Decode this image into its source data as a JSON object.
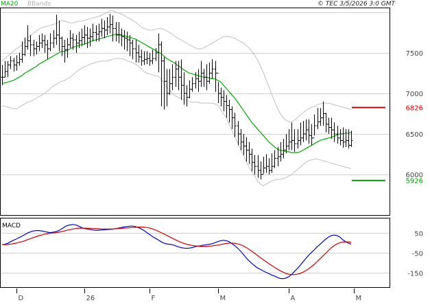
{
  "header": {
    "ma_label": "MA20",
    "bb_label": "BBands",
    "copyright": "© TEC 3/5/2026 3:0 GMT"
  },
  "colors": {
    "ma": "#00aa00",
    "bb": "#c0c0c0",
    "price": "#000000",
    "macd": "#0000cc",
    "signal": "#cc0000",
    "resistance": "#cc0000",
    "support": "#009900",
    "grid": "#d0d0d0",
    "frame": "#000000"
  },
  "chart_data": [
    {
      "type": "ohlc",
      "name": "price-panel",
      "y_ticks": [
        6000,
        6500,
        7000,
        7500
      ],
      "y_tick_labels": [
        "6000",
        "6500",
        "7000",
        "7500"
      ],
      "ylim": [
        5500,
        8050
      ],
      "x_count": 124,
      "x_ticks": [
        {
          "label": "D",
          "index": 5
        },
        {
          "label": "26",
          "index": 29
        },
        {
          "label": "F",
          "index": 52
        },
        {
          "label": "M",
          "index": 76
        },
        {
          "label": "A",
          "index": 101
        },
        {
          "label": "M",
          "index": 124
        }
      ],
      "levels": [
        {
          "label": "6826",
          "value": 6826,
          "kind": "resistance"
        },
        {
          "label": "5926",
          "value": 5926,
          "kind": "support"
        }
      ],
      "close": [
        7200,
        7270,
        7350,
        7400,
        7350,
        7380,
        7420,
        7480,
        7580,
        7650,
        7600,
        7550,
        7580,
        7620,
        7650,
        7600,
        7550,
        7620,
        7680,
        7720,
        7680,
        7580,
        7540,
        7600,
        7680,
        7660,
        7620,
        7650,
        7690,
        7720,
        7680,
        7700,
        7750,
        7730,
        7760,
        7800,
        7780,
        7820,
        7850,
        7800,
        7720,
        7720,
        7700,
        7680,
        7660,
        7620,
        7550,
        7500,
        7450,
        7400,
        7420,
        7430,
        7400,
        7430,
        7500,
        7600,
        7400,
        7150,
        7000,
        7120,
        7200,
        7300,
        7200,
        7100,
        7000,
        6950,
        7050,
        7120,
        7180,
        7150,
        7250,
        7200,
        7150,
        7250,
        7300,
        7250,
        7000,
        6950,
        6900,
        6850,
        6800,
        6700,
        6600,
        6500,
        6400,
        6350,
        6300,
        6250,
        6150,
        6100,
        6050,
        6000,
        6080,
        6100,
        6050,
        6100,
        6200,
        6220,
        6250,
        6300,
        6350,
        6400,
        6420,
        6380,
        6420,
        6450,
        6500,
        6550,
        6480,
        6450,
        6600,
        6650,
        6700,
        6750,
        6620,
        6580,
        6550,
        6500,
        6450,
        6420,
        6400,
        6420,
        6360,
        6420
      ],
      "high": [
        7350,
        7400,
        7400,
        7460,
        7440,
        7470,
        7500,
        7640,
        7690,
        7840,
        7720,
        7660,
        7640,
        7720,
        7740,
        7720,
        7660,
        7740,
        7780,
        7970,
        7900,
        7700,
        7660,
        7680,
        7780,
        7740,
        7720,
        7760,
        7800,
        7840,
        7820,
        7800,
        7860,
        7840,
        7860,
        7920,
        7900,
        7940,
        7980,
        7960,
        7880,
        7880,
        7800,
        7780,
        7760,
        7720,
        7660,
        7660,
        7600,
        7540,
        7520,
        7520,
        7500,
        7540,
        7560,
        7740,
        7640,
        7450,
        7300,
        7300,
        7360,
        7400,
        7400,
        7420,
        7260,
        7100,
        7160,
        7200,
        7260,
        7300,
        7400,
        7300,
        7360,
        7380,
        7420,
        7400,
        7140,
        7070,
        7040,
        6980,
        6920,
        6840,
        6760,
        6660,
        6560,
        6500,
        6460,
        6400,
        6320,
        6240,
        6240,
        6160,
        6220,
        6250,
        6200,
        6260,
        6300,
        6340,
        6400,
        6440,
        6500,
        6560,
        6640,
        6560,
        6560,
        6640,
        6660,
        6680,
        6680,
        6620,
        6740,
        6820,
        6820,
        6900,
        6760,
        6700,
        6700,
        6640,
        6600,
        6560,
        6580,
        6560,
        6560,
        6540
      ],
      "low": [
        7100,
        7200,
        7200,
        7300,
        7270,
        7280,
        7340,
        7380,
        7460,
        7540,
        7460,
        7460,
        7480,
        7520,
        7560,
        7500,
        7420,
        7520,
        7560,
        7600,
        7520,
        7460,
        7380,
        7440,
        7560,
        7540,
        7500,
        7560,
        7580,
        7600,
        7560,
        7580,
        7640,
        7640,
        7640,
        7700,
        7680,
        7720,
        7740,
        7640,
        7640,
        7620,
        7580,
        7540,
        7520,
        7460,
        7420,
        7380,
        7380,
        7340,
        7350,
        7360,
        7340,
        7360,
        7400,
        7260,
        6840,
        6800,
        6840,
        6980,
        7040,
        7080,
        7040,
        6920,
        6860,
        6840,
        6940,
        7020,
        7060,
        7020,
        7080,
        7080,
        7040,
        7120,
        7180,
        7020,
        6880,
        6840,
        6780,
        6700,
        6640,
        6560,
        6460,
        6360,
        6300,
        6240,
        6160,
        6130,
        6040,
        6000,
        5960,
        5940,
        6010,
        6020,
        6000,
        6020,
        6080,
        6100,
        6160,
        6200,
        6260,
        6300,
        6300,
        6280,
        6320,
        6360,
        6400,
        6420,
        6380,
        6360,
        6480,
        6560,
        6600,
        6600,
        6520,
        6500,
        6440,
        6400,
        6380,
        6360,
        6330,
        6340,
        6320,
        6340
      ],
      "ma20": [
        7120,
        7130,
        7140,
        7150,
        7160,
        7180,
        7200,
        7220,
        7250,
        7270,
        7290,
        7310,
        7330,
        7360,
        7380,
        7400,
        7420,
        7440,
        7460,
        7480,
        7500,
        7520,
        7520,
        7530,
        7550,
        7570,
        7580,
        7590,
        7600,
        7610,
        7620,
        7640,
        7650,
        7660,
        7670,
        7680,
        7690,
        7700,
        7710,
        7720,
        7730,
        7730,
        7720,
        7710,
        7700,
        7690,
        7680,
        7670,
        7650,
        7630,
        7610,
        7590,
        7570,
        7550,
        7530,
        7510,
        7490,
        7460,
        7430,
        7410,
        7390,
        7370,
        7340,
        7320,
        7290,
        7270,
        7250,
        7240,
        7230,
        7220,
        7210,
        7200,
        7200,
        7190,
        7180,
        7180,
        7160,
        7140,
        7100,
        7060,
        7020,
        6980,
        6940,
        6890,
        6840,
        6790,
        6740,
        6690,
        6640,
        6600,
        6560,
        6520,
        6480,
        6440,
        6400,
        6370,
        6340,
        6310,
        6300,
        6290,
        6280,
        6280,
        6270,
        6270,
        6270,
        6280,
        6300,
        6320,
        6340,
        6360,
        6380,
        6400,
        6420,
        6430,
        6440,
        6450,
        6460,
        6470,
        6490,
        6500,
        6500,
        6510,
        6510,
        6520
      ],
      "bb_upper": [
        7400,
        7430,
        7460,
        7490,
        7520,
        7550,
        7570,
        7600,
        7640,
        7680,
        7710,
        7740,
        7770,
        7790,
        7810,
        7820,
        7830,
        7840,
        7850,
        7860,
        7880,
        7900,
        7890,
        7880,
        7870,
        7870,
        7880,
        7890,
        7890,
        7900,
        7910,
        7920,
        7930,
        7940,
        7950,
        7960,
        7980,
        8000,
        8020,
        8020,
        8000,
        7990,
        7980,
        7960,
        7940,
        7920,
        7900,
        7880,
        7850,
        7820,
        7800,
        7790,
        7780,
        7780,
        7790,
        7800,
        7800,
        7790,
        7770,
        7750,
        7730,
        7700,
        7680,
        7660,
        7640,
        7620,
        7600,
        7580,
        7560,
        7550,
        7550,
        7560,
        7580,
        7600,
        7620,
        7640,
        7660,
        7680,
        7700,
        7700,
        7700,
        7690,
        7680,
        7660,
        7640,
        7620,
        7590,
        7560,
        7520,
        7470,
        7410,
        7340,
        7260,
        7170,
        7080,
        6990,
        6900,
        6820,
        6750,
        6700,
        6670,
        6650,
        6650,
        6670,
        6700,
        6730,
        6760,
        6790,
        6810,
        6830,
        6840,
        6860,
        6870,
        6880,
        6880,
        6880,
        6870,
        6860,
        6850,
        6840,
        6830,
        6820,
        6810,
        6800
      ],
      "bb_lower": [
        6850,
        6840,
        6830,
        6820,
        6810,
        6810,
        6830,
        6850,
        6870,
        6890,
        6900,
        6920,
        6940,
        6960,
        6980,
        7000,
        7030,
        7060,
        7090,
        7110,
        7130,
        7150,
        7160,
        7180,
        7200,
        7230,
        7260,
        7290,
        7310,
        7330,
        7340,
        7360,
        7370,
        7380,
        7390,
        7400,
        7400,
        7400,
        7410,
        7420,
        7430,
        7430,
        7430,
        7420,
        7400,
        7390,
        7380,
        7360,
        7340,
        7300,
        7270,
        7250,
        7240,
        7230,
        7220,
        7210,
        7180,
        7130,
        7080,
        7040,
        7000,
        6970,
        6950,
        6940,
        6920,
        6910,
        6900,
        6890,
        6890,
        6890,
        6880,
        6880,
        6880,
        6880,
        6880,
        6870,
        6850,
        6800,
        6750,
        6700,
        6620,
        6540,
        6460,
        6390,
        6310,
        6240,
        6160,
        6090,
        6030,
        5980,
        5920,
        5880,
        5860,
        5880,
        5900,
        5920,
        5930,
        5940,
        5940,
        5950,
        5960,
        5980,
        6000,
        6030,
        6060,
        6090,
        6120,
        6150,
        6170,
        6180,
        6190,
        6190,
        6180,
        6170,
        6160,
        6150,
        6140,
        6130,
        6120,
        6110,
        6100,
        6090,
        6080,
        6070
      ]
    },
    {
      "type": "line",
      "name": "macd-panel",
      "title": "MACD",
      "y_ticks": [
        50,
        -50,
        -150
      ],
      "y_tick_labels": [
        "50",
        "-50",
        "-150"
      ],
      "ylim": [
        -220,
        120
      ],
      "series": [
        {
          "key": "macd",
          "values": [
            -10,
            -8,
            -3,
            5,
            12,
            18,
            25,
            32,
            40,
            48,
            54,
            58,
            60,
            60,
            58,
            55,
            52,
            50,
            52,
            55,
            60,
            68,
            78,
            85,
            88,
            90,
            88,
            82,
            75,
            70,
            68,
            65,
            63,
            62,
            62,
            63,
            64,
            65,
            66,
            67,
            70,
            72,
            75,
            78,
            80,
            82,
            82,
            80,
            75,
            68,
            60,
            50,
            40,
            30,
            22,
            14,
            5,
            -2,
            -6,
            -8,
            -10,
            -15,
            -20,
            -24,
            -27,
            -28,
            -27,
            -24,
            -20,
            -17,
            -15,
            -12,
            -10,
            -8,
            -5,
            0,
            5,
            10,
            12,
            10,
            5,
            -5,
            -15,
            -28,
            -42,
            -58,
            -75,
            -90,
            -103,
            -115,
            -125,
            -132,
            -140,
            -147,
            -153,
            -160,
            -165,
            -172,
            -177,
            -178,
            -175,
            -168,
            -157,
            -142,
            -128,
            -112,
            -95,
            -78,
            -62,
            -48,
            -35,
            -20,
            -8,
            5,
            18,
            28,
            35,
            38,
            35,
            28,
            15,
            5,
            -2,
            -8
          ]
        },
        {
          "key": "signal",
          "values": [
            -10,
            -10,
            -9,
            -7,
            -4,
            -2,
            2,
            5,
            10,
            15,
            20,
            25,
            30,
            35,
            38,
            42,
            45,
            47,
            48,
            50,
            52,
            55,
            58,
            62,
            65,
            68,
            70,
            72,
            72,
            72,
            71,
            71,
            70,
            70,
            69,
            68,
            68,
            68,
            68,
            68,
            69,
            70,
            71,
            72,
            73,
            74,
            75,
            76,
            77,
            77,
            77,
            75,
            72,
            68,
            63,
            57,
            50,
            43,
            36,
            29,
            22,
            15,
            8,
            2,
            -3,
            -8,
            -11,
            -14,
            -16,
            -17,
            -18,
            -18,
            -18,
            -17,
            -16,
            -14,
            -12,
            -9,
            -6,
            -4,
            -2,
            -2,
            -3,
            -6,
            -10,
            -16,
            -24,
            -33,
            -43,
            -53,
            -64,
            -74,
            -84,
            -94,
            -104,
            -113,
            -122,
            -131,
            -139,
            -146,
            -152,
            -156,
            -158,
            -158,
            -156,
            -152,
            -146,
            -138,
            -129,
            -118,
            -106,
            -93,
            -80,
            -66,
            -52,
            -38,
            -25,
            -14,
            -6,
            0,
            3,
            4,
            4,
            2
          ]
        }
      ]
    }
  ]
}
